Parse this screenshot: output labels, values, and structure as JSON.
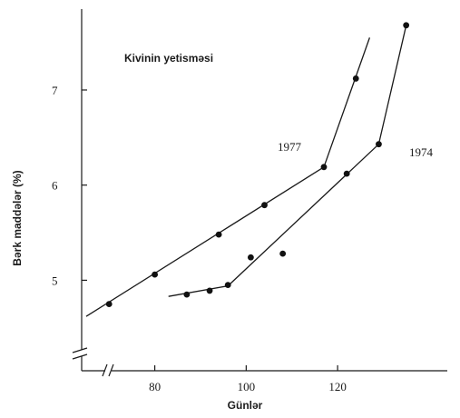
{
  "chart_data": {
    "type": "scatter",
    "title": "Kivinin yetisməsi",
    "xlabel": "Günlər",
    "ylabel": "Bərk maddələr (%)",
    "x_ticks": [
      80,
      100,
      120
    ],
    "y_ticks": [
      5,
      6,
      7
    ],
    "xlim": [
      64,
      144
    ],
    "ylim": [
      4.45,
      7.85
    ],
    "axis_breaks": true,
    "grid": false,
    "series": [
      {
        "name": "1977",
        "points": [
          [
            70,
            4.75
          ],
          [
            80,
            5.06
          ],
          [
            94,
            5.48
          ],
          [
            104,
            5.79
          ],
          [
            117,
            6.19
          ],
          [
            124,
            7.12
          ]
        ],
        "fit_line": [
          [
            65,
            4.62
          ],
          [
            117,
            6.19
          ],
          [
            127,
            7.55
          ]
        ]
      },
      {
        "name": "1974",
        "points": [
          [
            87,
            4.85
          ],
          [
            92,
            4.89
          ],
          [
            96,
            4.95
          ],
          [
            101,
            5.24
          ],
          [
            108,
            5.28
          ],
          [
            122,
            6.12
          ],
          [
            129,
            6.43
          ],
          [
            135,
            7.68
          ]
        ],
        "fit_line": [
          [
            83,
            4.83
          ],
          [
            96,
            4.94
          ],
          [
            129,
            6.43
          ],
          [
            135,
            7.68
          ]
        ]
      }
    ]
  }
}
